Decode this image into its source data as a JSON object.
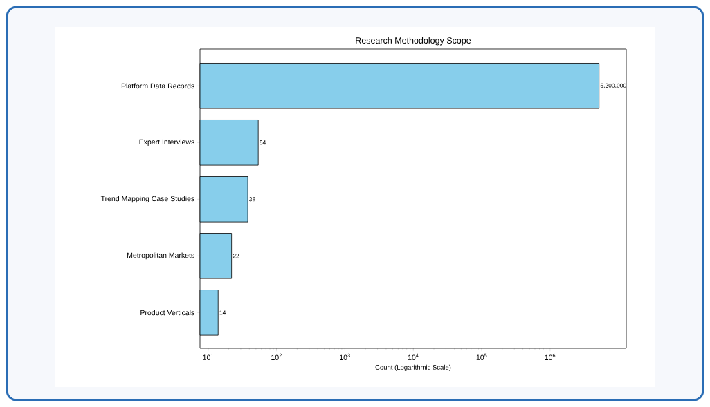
{
  "chart_data": {
    "type": "bar",
    "orientation": "horizontal",
    "title": "Research Methodology Scope",
    "xlabel": "Count (Logarithmic Scale)",
    "categories": [
      "Platform Data Records",
      "Expert Interviews",
      "Trend Mapping Case Studies",
      "Metropolitan Markets",
      "Product Verticals"
    ],
    "values": [
      5200000,
      54,
      38,
      22,
      14
    ],
    "value_labels": [
      "5,200,000",
      "54",
      "38",
      "22",
      "14"
    ],
    "color": "#87ceeb",
    "log": "x",
    "xlim": [
      7.6,
      13000000
    ],
    "xticks": [
      {
        "value": 10,
        "label": "10$^{1}$"
      },
      {
        "value": 100,
        "label": "10$^{2}$"
      },
      {
        "value": 1000,
        "label": "10$^{3}$"
      },
      {
        "value": 10000,
        "label": "10$^{4}$"
      },
      {
        "value": 100000,
        "label": "10$^{5}$"
      },
      {
        "value": 1000000,
        "label": "10$^{6}$"
      }
    ]
  }
}
